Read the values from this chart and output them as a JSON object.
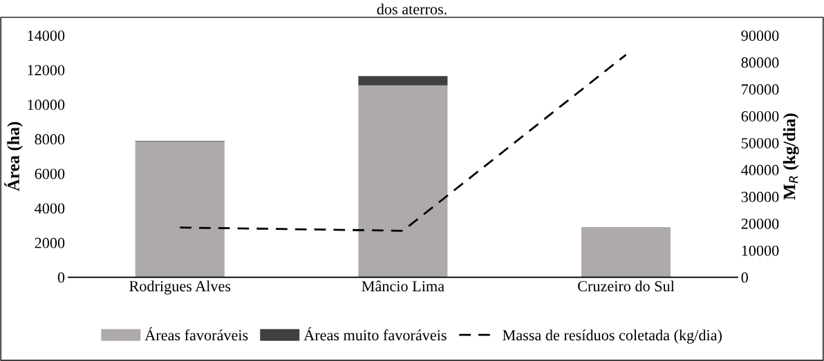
{
  "chart_data": {
    "type": "bar",
    "stacked": true,
    "title": "dos aterros.",
    "categories": [
      "Rodrigues Alves",
      "Mâncio Lima",
      "Cruzeiro do Sul"
    ],
    "series": [
      {
        "name": "Áreas favoráveis",
        "color": "#aeaaaa",
        "values": [
          7850,
          11100,
          2900
        ]
      },
      {
        "name": "Áreas muito favoráveis",
        "color": "#404040",
        "values": [
          40,
          540,
          0
        ]
      },
      {
        "name": "Massa de resíduos coletada (kg/dia)",
        "type": "line",
        "axis": "y2",
        "color": "#000000",
        "line_style": "dashed",
        "values": [
          18500,
          17300,
          82800
        ]
      }
    ],
    "ylabel": "Área (ha)",
    "y2label": "M$_{R}$ (kg/dia)",
    "ylim": [
      0,
      14000
    ],
    "yticks": [
      0,
      2000,
      4000,
      6000,
      8000,
      10000,
      12000,
      14000
    ],
    "y2lim": [
      0,
      90000
    ],
    "y2ticks": [
      0,
      10000,
      20000,
      30000,
      40000,
      50000,
      60000,
      70000,
      80000,
      90000
    ],
    "grid": false,
    "legend": "bottom"
  }
}
